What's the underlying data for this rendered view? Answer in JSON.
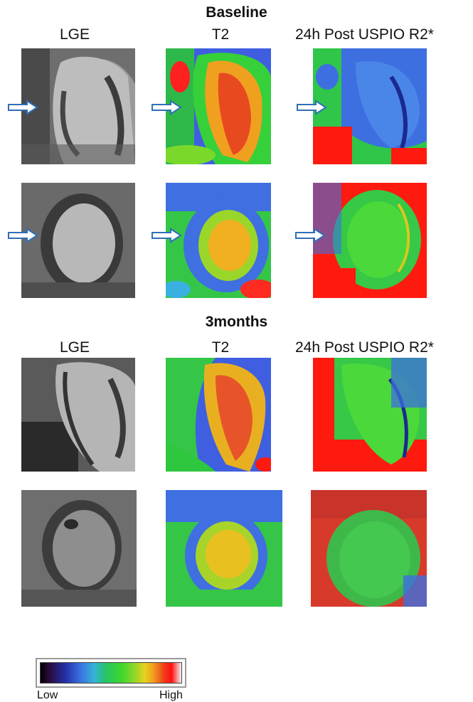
{
  "sections": {
    "baseline_title": "Baseline",
    "followup_title": "3months"
  },
  "columns": {
    "lge": "LGE",
    "t2": "T2",
    "r2star": "24h Post USPIO R2*"
  },
  "colorbar": {
    "low_label": "Low",
    "high_label": "High"
  },
  "colors": {
    "arrow_fill": "#ffffff",
    "arrow_stroke": "#2f6fb8"
  }
}
